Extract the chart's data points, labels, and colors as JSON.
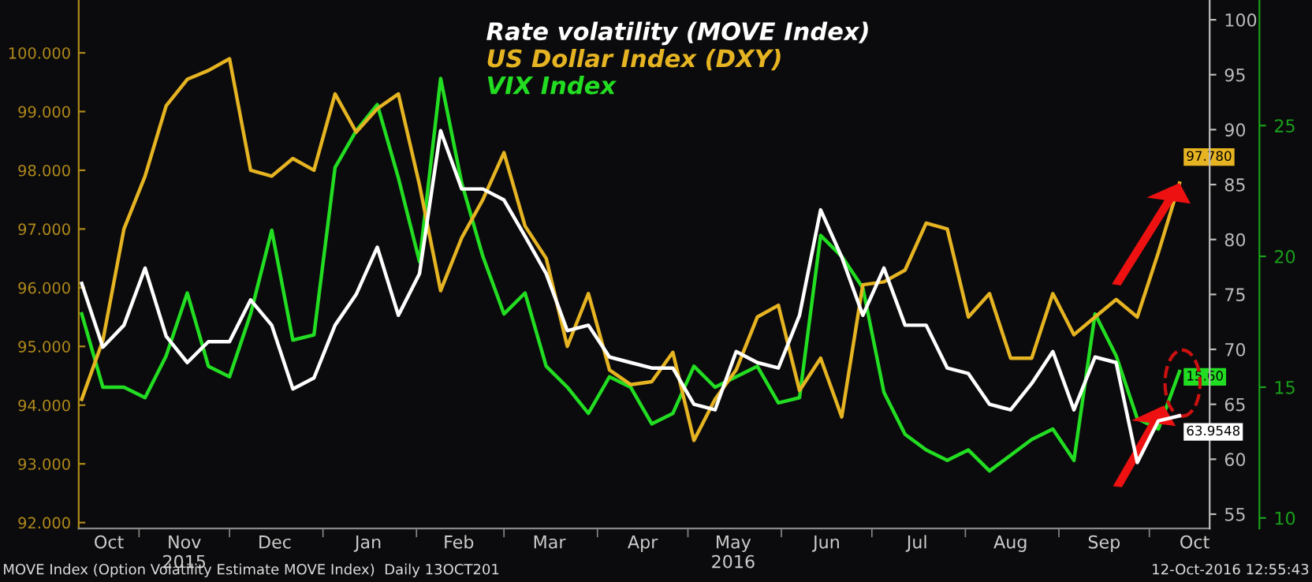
{
  "chart_data": {
    "type": "line",
    "x": [
      "2015-10-13",
      "2015-10-20",
      "2015-10-27",
      "2015-11-03",
      "2015-11-10",
      "2015-11-17",
      "2015-11-24",
      "2015-12-01",
      "2015-12-08",
      "2015-12-15",
      "2015-12-22",
      "2015-12-29",
      "2016-01-05",
      "2016-01-12",
      "2016-01-19",
      "2016-01-26",
      "2016-02-02",
      "2016-02-09",
      "2016-02-16",
      "2016-02-23",
      "2016-03-01",
      "2016-03-08",
      "2016-03-15",
      "2016-03-22",
      "2016-03-29",
      "2016-04-05",
      "2016-04-12",
      "2016-04-19",
      "2016-04-26",
      "2016-05-03",
      "2016-05-10",
      "2016-05-17",
      "2016-05-24",
      "2016-05-31",
      "2016-06-07",
      "2016-06-14",
      "2016-06-21",
      "2016-06-28",
      "2016-07-05",
      "2016-07-12",
      "2016-07-19",
      "2016-07-26",
      "2016-08-02",
      "2016-08-09",
      "2016-08-16",
      "2016-08-23",
      "2016-08-30",
      "2016-09-06",
      "2016-09-13",
      "2016-09-20",
      "2016-09-27",
      "2016-10-04",
      "2016-10-11"
    ],
    "series": [
      {
        "name": "Rate volatility (MOVE Index)",
        "color": "#ffffff",
        "axis": "y2",
        "values": [
          76.0,
          70.2,
          72.2,
          77.4,
          71.2,
          68.8,
          70.7,
          70.7,
          74.5,
          72.2,
          66.4,
          67.4,
          72.2,
          75.0,
          79.3,
          73.1,
          76.9,
          89.9,
          84.6,
          84.6,
          83.6,
          80.3,
          76.9,
          71.7,
          72.2,
          69.3,
          68.8,
          68.3,
          68.3,
          65.0,
          64.5,
          69.8,
          68.8,
          68.3,
          73.1,
          82.7,
          78.4,
          73.1,
          77.4,
          72.2,
          72.2,
          68.3,
          67.8,
          65.0,
          64.5,
          66.9,
          69.8,
          64.5,
          69.3,
          68.8,
          59.7,
          63.5,
          63.9548
        ],
        "value_labels": [
          null,
          null,
          null,
          null,
          null,
          null,
          null,
          null,
          null,
          null,
          null,
          null,
          null,
          null,
          null,
          null,
          null,
          null,
          null,
          null,
          null,
          null,
          null,
          null,
          null,
          null,
          null,
          null,
          null,
          null,
          null,
          null,
          null,
          null,
          null,
          null,
          null,
          null,
          null,
          null,
          null,
          null,
          null,
          null,
          null,
          null,
          null,
          null,
          null,
          null,
          null,
          null,
          "63.9548"
        ]
      },
      {
        "name": "US Dollar Index (DXY)",
        "color": "#e6b422",
        "values": [
          94.1,
          95.1,
          97.0,
          97.9,
          99.1,
          99.55,
          99.7,
          99.9,
          98.0,
          97.9,
          98.2,
          98.0,
          99.3,
          98.65,
          99.05,
          99.3,
          97.75,
          95.95,
          96.85,
          97.5,
          98.3,
          97.05,
          96.5,
          95.0,
          95.9,
          94.6,
          94.35,
          94.4,
          94.9,
          93.4,
          94.1,
          94.6,
          95.5,
          95.7,
          94.25,
          94.8,
          93.8,
          96.05,
          96.1,
          96.3,
          97.1,
          97.0,
          95.5,
          95.9,
          94.8,
          94.8,
          95.9,
          95.2,
          95.5,
          95.8,
          95.5,
          96.6,
          97.78
        ],
        "value_labels": [
          null,
          null,
          null,
          null,
          null,
          null,
          null,
          null,
          null,
          null,
          null,
          null,
          null,
          null,
          null,
          null,
          null,
          null,
          null,
          null,
          null,
          null,
          null,
          null,
          null,
          null,
          null,
          null,
          null,
          null,
          null,
          null,
          null,
          null,
          null,
          null,
          null,
          null,
          null,
          null,
          null,
          null,
          null,
          null,
          null,
          null,
          null,
          null,
          null,
          null,
          null,
          null,
          "97.780"
        ]
      },
      {
        "name": "VIX Index",
        "color": "#22dd22",
        "axis": "y3",
        "values": [
          17.8,
          15.0,
          15.0,
          14.6,
          16.2,
          18.6,
          15.8,
          15.4,
          17.8,
          21.0,
          16.8,
          17.0,
          23.4,
          24.8,
          25.8,
          23.0,
          19.8,
          26.8,
          22.8,
          20.0,
          17.8,
          18.6,
          15.8,
          15.0,
          14.0,
          15.4,
          15.0,
          13.6,
          14.0,
          15.8,
          15.0,
          15.4,
          15.8,
          14.4,
          14.6,
          20.8,
          20.0,
          18.8,
          14.8,
          13.2,
          12.6,
          12.2,
          12.6,
          11.8,
          12.4,
          13.0,
          13.4,
          12.2,
          17.8,
          16.2,
          13.8,
          13.4,
          15.6
        ],
        "value_labels": [
          null,
          null,
          null,
          null,
          null,
          null,
          null,
          null,
          null,
          null,
          null,
          null,
          null,
          null,
          null,
          null,
          null,
          null,
          null,
          null,
          null,
          null,
          null,
          null,
          null,
          null,
          null,
          null,
          null,
          null,
          null,
          null,
          null,
          null,
          null,
          null,
          null,
          null,
          null,
          null,
          null,
          null,
          null,
          null,
          null,
          null,
          null,
          null,
          null,
          null,
          null,
          null,
          "15.60"
        ]
      }
    ],
    "xlim": [
      "2015-10-12",
      "2016-10-21"
    ],
    "xticks": [
      {
        "value": "2015-10-22",
        "label": "Oct"
      },
      {
        "value": "2015-11-16",
        "label": "Nov\n2015"
      },
      {
        "value": "2015-12-16",
        "label": "Dec"
      },
      {
        "value": "2016-01-16",
        "label": "Jan"
      },
      {
        "value": "2016-02-15",
        "label": "Feb"
      },
      {
        "value": "2016-03-16",
        "label": "Mar"
      },
      {
        "value": "2016-04-16",
        "label": "Apr"
      },
      {
        "value": "2016-05-16",
        "label": "May\n2016"
      },
      {
        "value": "2016-06-16",
        "label": "Jun"
      },
      {
        "value": "2016-07-16",
        "label": "Jul"
      },
      {
        "value": "2016-08-16",
        "label": "Aug"
      },
      {
        "value": "2016-09-16",
        "label": "Sep"
      },
      {
        "value": "2016-10-16",
        "label": "Oct"
      },
      {
        "value": "2015-11-01",
        "label": null
      },
      {
        "value": "2015-12-01",
        "label": null
      },
      {
        "value": "2016-01-01",
        "label": null
      },
      {
        "value": "2016-02-01",
        "label": null
      },
      {
        "value": "2016-03-01",
        "label": null
      },
      {
        "value": "2016-04-01",
        "label": null
      },
      {
        "value": "2016-05-01",
        "label": null
      },
      {
        "value": "2016-06-01",
        "label": null
      },
      {
        "value": "2016-07-01",
        "label": null
      },
      {
        "value": "2016-08-01",
        "label": null
      },
      {
        "value": "2016-09-01",
        "label": null
      },
      {
        "value": "2016-10-01",
        "label": null
      }
    ],
    "ylim": [
      91.9,
      100.9
    ],
    "yticks": [
      {
        "value": 92,
        "label": "92.000"
      },
      {
        "value": 93,
        "label": "93.000"
      },
      {
        "value": 94,
        "label": "94.000"
      },
      {
        "value": 95,
        "label": "95.000"
      },
      {
        "value": 96,
        "label": "96.000"
      },
      {
        "value": 97,
        "label": "97.000"
      },
      {
        "value": 98,
        "label": "98.000"
      },
      {
        "value": 99,
        "label": "99.000"
      },
      {
        "value": 100,
        "label": "100.000"
      }
    ],
    "y2lim": [
      53.7,
      101.8
    ],
    "y2ticks": [
      55,
      60,
      65,
      70,
      75,
      80,
      85,
      90,
      95,
      100
    ],
    "y3lim": [
      9.6,
      29.8
    ],
    "y3ticks": [
      10,
      15,
      20,
      25
    ],
    "legend": "top",
    "grid": false,
    "annotations": [
      "MOVE Index (Option Volatility Estimate MOVE Index)  Daily 13OCT201",
      "12-Oct-2016 12:55:43"
    ]
  }
}
